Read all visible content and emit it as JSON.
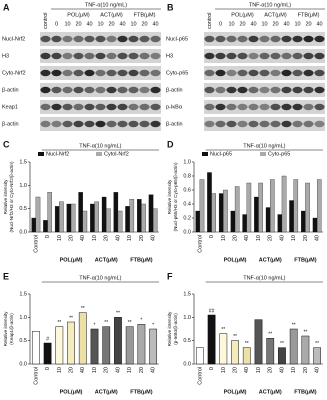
{
  "blots": [
    {
      "letter": "A",
      "treatment": "TNF-α(10 ng/mL)",
      "lanes": [
        "control",
        "0",
        "10",
        "20",
        "40",
        "10",
        "20",
        "40",
        "10",
        "20",
        "40"
      ],
      "groups": [
        "POL(μM)",
        "ACT(μM)",
        "FTB(μM)"
      ],
      "rows": [
        "Nucl-Nrf2",
        "H3",
        "Cyto-Nrf2",
        "β-actin",
        "Keap1",
        "β-actin"
      ]
    },
    {
      "letter": "B",
      "treatment": "TNF-α(10 ng/mL)",
      "lanes": [
        "control",
        "0",
        "10",
        "20",
        "40",
        "10",
        "20",
        "40",
        "10",
        "20",
        "40"
      ],
      "groups": [
        "POL(μM)",
        "ACT(μM)",
        "FTB(μM)"
      ],
      "rows": [
        "Nucl-p65",
        "H3",
        "Cyto-p65",
        "β-actin",
        "p-IκBα",
        "β-actin"
      ]
    }
  ],
  "chart_data": [
    {
      "type": "bar",
      "letter": "C",
      "title": "TNF-α(10 ng/mL)",
      "ylabel": [
        "Relative intensity",
        "(Nucl-Nrf2/H3 or Cyto-Nrf2/β-actin)"
      ],
      "categories": [
        "Control",
        "0",
        "10",
        "20",
        "40",
        "10",
        "20",
        "40",
        "10",
        "20",
        "40"
      ],
      "groups": [
        "POL(μM)",
        "ACT(μM)",
        "FTB(μM)"
      ],
      "series": [
        {
          "name": "Nucl-Nrf2",
          "color": "#111111",
          "values": [
            0.3,
            0.25,
            0.55,
            0.6,
            0.85,
            0.6,
            0.75,
            0.85,
            0.55,
            0.7,
            0.8
          ]
        },
        {
          "name": "Cytol-Nrf2",
          "color": "#aaaaaa",
          "values": [
            0.75,
            0.85,
            0.65,
            0.6,
            0.45,
            0.65,
            0.5,
            0.45,
            0.7,
            0.6,
            0.5
          ]
        }
      ],
      "ylim": [
        0,
        1.5
      ],
      "yticks": [
        {
          "value": 0,
          "label": "0.0"
        },
        {
          "value": 0.5,
          "label": "0.5"
        },
        {
          "value": 1,
          "label": "1.0"
        },
        {
          "value": 1.5,
          "label": "1.5"
        }
      ]
    },
    {
      "type": "bar",
      "letter": "D",
      "title": "TNF-α(10 ng/mL)",
      "ylabel": [
        "Relative intensity",
        "(Nucl-p65/H3 or Cyto-p65/β-actin)"
      ],
      "categories": [
        "Control",
        "0",
        "10",
        "20",
        "40",
        "10",
        "20",
        "40",
        "10",
        "20",
        "40"
      ],
      "groups": [
        "POL(μM)",
        "ACT(μM)",
        "FTB(μM)"
      ],
      "series": [
        {
          "name": "Nucl-p65",
          "color": "#111111",
          "values": [
            0.3,
            0.85,
            0.55,
            0.3,
            0.25,
            0.5,
            0.35,
            0.25,
            0.45,
            0.3,
            0.2
          ]
        },
        {
          "name": "Cyto-p65",
          "color": "#aaaaaa",
          "values": [
            0.75,
            0.55,
            0.6,
            0.65,
            0.7,
            0.7,
            0.75,
            0.8,
            0.75,
            0.7,
            0.75
          ]
        }
      ],
      "ylim": [
        0,
        1
      ],
      "yticks": [
        {
          "value": 0,
          "label": "0.0"
        },
        {
          "value": 0.2,
          "label": "0.2"
        },
        {
          "value": 0.4,
          "label": "0.4"
        },
        {
          "value": 0.6,
          "label": "0.6"
        },
        {
          "value": 0.8,
          "label": "0.8"
        },
        {
          "value": 1,
          "label": "1.0"
        }
      ]
    },
    {
      "type": "bar",
      "letter": "E",
      "title": "TNF-α(10 ng/mL)",
      "ylabel": [
        "Relative intensity",
        "(Keap1/β-actin)"
      ],
      "categories": [
        "Control",
        "0",
        "10",
        "20",
        "40",
        "10",
        "20",
        "40",
        "10",
        "20",
        "40"
      ],
      "groups": [
        "POL(μM)",
        "ACT(μM)",
        "FTB(μM)"
      ],
      "values": [
        0.7,
        0.45,
        0.8,
        0.9,
        1.1,
        0.75,
        0.8,
        1.0,
        0.8,
        0.85,
        0.75
      ],
      "colors": [
        "#ffffff",
        "#111111",
        "#fdf8dc",
        "#f4ecc0",
        "#ece0a4",
        "#555555",
        "#777777",
        "#444444",
        "#999999",
        "#aaaaaa",
        "#bbbbbb"
      ],
      "significance": [
        null,
        "#",
        "**",
        "**",
        "**",
        "*",
        "**",
        "**",
        "**",
        "*",
        "*"
      ],
      "ylim": [
        0,
        1.5
      ],
      "yticks": [
        {
          "value": 0,
          "label": "0.0"
        },
        {
          "value": 0.5,
          "label": "0.5"
        },
        {
          "value": 1,
          "label": "1.0"
        },
        {
          "value": 1.5,
          "label": "1.5"
        }
      ]
    },
    {
      "type": "bar",
      "letter": "F",
      "title": "TNF-α(10 ng/mL)",
      "ylabel": [
        "Relative intensity",
        "(p-IκBα/β-actin)"
      ],
      "categories": [
        "Control",
        "0",
        "10",
        "20",
        "40",
        "10",
        "20",
        "40",
        "10",
        "20",
        "40"
      ],
      "groups": [
        "POL(μM)",
        "ACT(μM)",
        "FTB(μM)"
      ],
      "values": [
        0.35,
        1.05,
        0.65,
        0.5,
        0.35,
        0.95,
        0.55,
        0.35,
        0.75,
        0.6,
        0.35
      ],
      "colors": [
        "#ffffff",
        "#111111",
        "#fdf8dc",
        "#f4ecc0",
        "#ece0a4",
        "#555555",
        "#777777",
        "#444444",
        "#999999",
        "#aaaaaa",
        "#bbbbbb"
      ],
      "significance": [
        null,
        "##",
        "**",
        "**",
        "**",
        null,
        "**",
        "**",
        "**",
        "**",
        "**"
      ],
      "ylim": [
        0,
        1.5
      ],
      "yticks": [
        {
          "value": 0,
          "label": "0.0"
        },
        {
          "value": 0.5,
          "label": "0.5"
        },
        {
          "value": 1,
          "label": "1.0"
        },
        {
          "value": 1.5,
          "label": "1.5"
        }
      ]
    }
  ]
}
